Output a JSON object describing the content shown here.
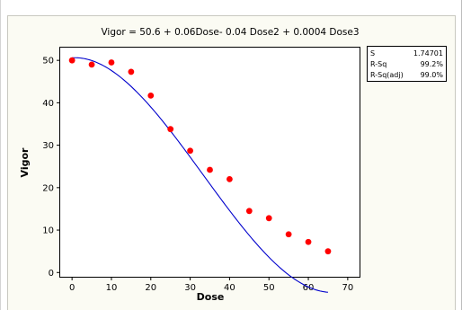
{
  "chart_data": {
    "type": "scatter",
    "title": "Vigor  =  50.6 + 0.06Dose- 0.04 Dose2 + 0.0004 Dose3",
    "xlabel": "Dose",
    "ylabel": "Vigor",
    "xlim": [
      -3,
      73
    ],
    "ylim": [
      -1,
      53
    ],
    "xticks": [
      0,
      10,
      20,
      30,
      40,
      50,
      60,
      70
    ],
    "yticks": [
      0,
      10,
      20,
      30,
      40,
      50
    ],
    "series": [
      {
        "type": "scatter",
        "color": "#ff0000",
        "x": [
          0,
          5,
          10,
          15,
          20,
          25,
          30,
          35,
          40,
          45,
          50,
          55,
          60,
          65
        ],
        "y": [
          50,
          49,
          49.5,
          47.3,
          41.7,
          33.8,
          28.7,
          24.2,
          22,
          14.5,
          12.8,
          9,
          7.2,
          5
        ]
      },
      {
        "type": "line",
        "color": "#0000cc",
        "coefficients": [
          50.6,
          0.06,
          -0.04,
          0.0004
        ],
        "x_range": [
          0,
          65
        ]
      }
    ],
    "stats": [
      {
        "label": "S",
        "value": "1.74701"
      },
      {
        "label": "R-Sq",
        "value": "99.2%"
      },
      {
        "label": "R-Sq(adj)",
        "value": "99.0%"
      }
    ]
  }
}
